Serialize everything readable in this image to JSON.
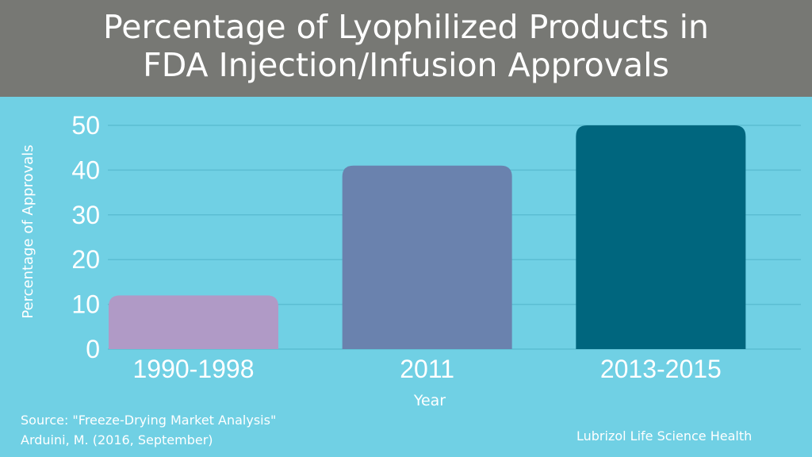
{
  "title_line1": "Percentage of Lyophilized Products in",
  "title_line2": "FDA Injection/Infusion Approvals",
  "source_line1": "Source: \"Freeze-Drying Market Analysis\"",
  "source_line2": "Arduini, M. (2016, September)",
  "brand": "Lubrizol Life Science Health",
  "colors": {
    "header": "#777874",
    "background": "#70d0e4",
    "gridline": "#5bbdd2"
  },
  "chart_data": {
    "type": "bar",
    "categories": [
      "1990-1998",
      "2011",
      "2013-2015"
    ],
    "values": [
      12,
      41,
      50
    ],
    "bar_colors": [
      "#b09ac6",
      "#6a82ae",
      "#00667e"
    ],
    "xlabel": "Year",
    "ylabel": "Percentage of Approvals",
    "ylim": [
      0,
      50
    ],
    "yticks": [
      0,
      10,
      20,
      30,
      40,
      50
    ],
    "grid": true
  }
}
